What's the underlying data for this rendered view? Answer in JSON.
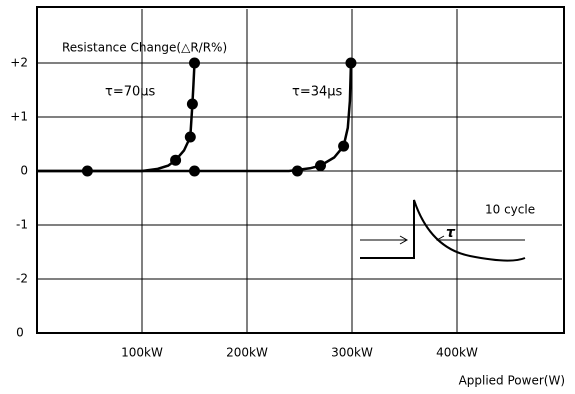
{
  "chart_data": {
    "type": "line",
    "annotations": {
      "ylabel": "Resistance Change(△R/R%)",
      "xlabel": "Applied Power(W)",
      "inset_label": "10 cycle",
      "inset_tau": "τ"
    },
    "xlim": [
      0,
      500
    ],
    "ylim": [
      -3,
      3
    ],
    "xticks": [
      {
        "value": 0,
        "label": "0"
      },
      {
        "value": 100,
        "label": "100kW"
      },
      {
        "value": 200,
        "label": "200kW"
      },
      {
        "value": 300,
        "label": "300kW"
      },
      {
        "value": 400,
        "label": "400kW"
      }
    ],
    "yticks": [
      {
        "value": 2,
        "label": "+2"
      },
      {
        "value": 1,
        "label": "+1"
      },
      0,
      -1,
      -2
    ],
    "grid": true,
    "color": "#000000",
    "series": [
      {
        "name": "τ=70μs",
        "color": "#000000",
        "x": [
          0,
          100,
          115,
          125,
          132,
          140,
          146,
          148,
          149,
          150
        ],
        "values": [
          0,
          0,
          0.04,
          0.1,
          0.2,
          0.38,
          0.63,
          1.24,
          1.6,
          2
        ],
        "points_x": [
          48,
          132,
          146,
          148,
          150,
          150
        ],
        "points_y": [
          0,
          0.2,
          0.63,
          1.24,
          2,
          0
        ]
      },
      {
        "name": "τ=34μs",
        "color": "#000000",
        "x": [
          0,
          240,
          260,
          270,
          283,
          292,
          296,
          298,
          299
        ],
        "values": [
          0,
          0,
          0.05,
          0.1,
          0.25,
          0.46,
          0.8,
          1.3,
          2
        ],
        "points_x": [
          248,
          270,
          292,
          299
        ],
        "points_y": [
          0,
          0.1,
          0.46,
          2
        ]
      }
    ]
  }
}
